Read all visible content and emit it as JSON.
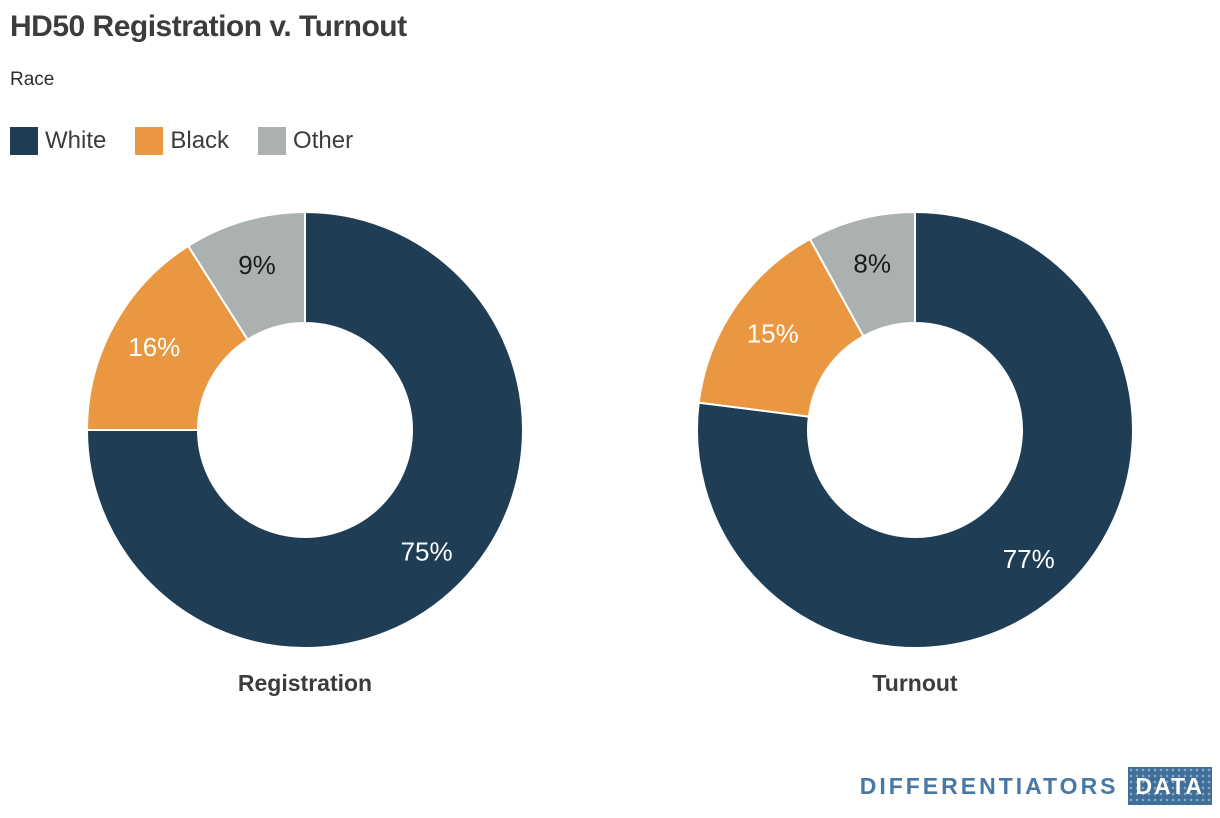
{
  "header": {
    "title": "HD50 Registration v. Turnout",
    "subtitle": "Race"
  },
  "legend": {
    "items": [
      {
        "label": "White",
        "color": "#1f3e56"
      },
      {
        "label": "Black",
        "color": "#e99740"
      },
      {
        "label": "Other",
        "color": "#abb1b1"
      }
    ]
  },
  "chart_data": [
    {
      "type": "pie",
      "title": "Registration",
      "categories": [
        "White",
        "Black",
        "Other"
      ],
      "values": [
        75,
        16,
        9
      ],
      "slice_labels": [
        "75%",
        "16%",
        "9%"
      ],
      "colors": [
        "#1f3e56",
        "#e99740",
        "#abb1b1"
      ],
      "slice_label_colors": [
        "#ffffff",
        "#ffffff",
        "#1a1a1a"
      ],
      "donut": true,
      "start_angle_deg": 0,
      "direction": "clockwise",
      "inner_radius_ratio": 0.49,
      "legend_position": "top-left",
      "grid": false
    },
    {
      "type": "pie",
      "title": "Turnout",
      "categories": [
        "White",
        "Black",
        "Other"
      ],
      "values": [
        77,
        15,
        8
      ],
      "slice_labels": [
        "77%",
        "15%",
        "8%"
      ],
      "colors": [
        "#1f3e56",
        "#e99740",
        "#abb1b1"
      ],
      "slice_label_colors": [
        "#ffffff",
        "#ffffff",
        "#1a1a1a"
      ],
      "donut": true,
      "start_angle_deg": 0,
      "direction": "clockwise",
      "inner_radius_ratio": 0.49,
      "legend_position": "top-left",
      "grid": false
    }
  ],
  "branding": {
    "name": "DIFFERENTIATORS",
    "badge": "DATA",
    "name_color": "#4878a5",
    "badge_bg": "#3f6e99",
    "badge_text_color": "#ffffff"
  }
}
